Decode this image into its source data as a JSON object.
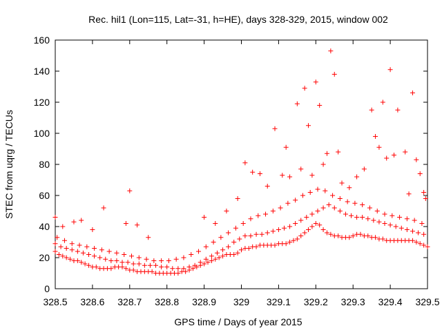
{
  "chart_data": {
    "type": "scatter",
    "title": "Rec. hil1 (Lon=115, Lat=-31, h=HE), days 328-329, 2015, window 002",
    "xlabel": "GPS time / Days of year 2015",
    "ylabel": "STEC from uqrg / TECUs",
    "xlim": [
      328.5,
      329.5
    ],
    "ylim": [
      0,
      160
    ],
    "x_ticks": [
      328.5,
      328.6,
      328.7,
      328.8,
      328.9,
      329.0,
      329.1,
      329.2,
      329.3,
      329.4,
      329.5
    ],
    "x_tick_labels": [
      "328.5",
      "328.6",
      "328.7",
      "328.8",
      "328.9",
      "329",
      "329.1",
      "329.2",
      "329.3",
      "329.4",
      "329.5"
    ],
    "y_ticks": [
      0,
      20,
      40,
      60,
      80,
      100,
      120,
      140,
      160
    ],
    "y_tick_labels": [
      "0",
      "20",
      "40",
      "60",
      "80",
      "100",
      "120",
      "140",
      "160"
    ],
    "grid": false,
    "marker": "plus",
    "colors": {
      "points": "#ff0000",
      "axes": "#000000",
      "background": "#ffffff"
    },
    "series": [
      {
        "x": [
          328.5,
          328.51,
          328.52,
          328.53,
          328.54,
          328.55,
          328.56,
          328.57,
          328.58,
          328.59,
          328.6,
          328.61,
          328.62,
          328.63,
          328.64,
          328.65,
          328.66,
          328.67,
          328.68,
          328.69,
          328.7,
          328.71,
          328.72,
          328.73,
          328.74,
          328.75,
          328.76,
          328.77,
          328.78,
          328.79,
          328.8,
          328.81,
          328.82,
          328.83,
          328.84,
          328.85,
          328.86,
          328.87,
          328.88,
          328.89,
          328.9,
          328.91,
          328.92,
          328.93,
          328.94,
          328.95,
          328.96,
          328.97,
          328.98,
          328.99,
          329.0,
          329.01,
          329.02,
          329.03,
          329.04,
          329.05,
          329.06,
          329.07,
          329.08,
          329.09,
          329.1,
          329.11,
          329.12,
          329.13,
          329.14,
          329.15,
          329.16,
          329.17,
          329.18,
          329.19,
          329.2,
          329.21,
          329.22,
          329.23,
          329.24,
          329.25,
          329.26,
          329.27,
          329.28,
          329.29,
          329.3,
          329.31,
          329.32,
          329.33,
          329.34,
          329.35,
          329.36,
          329.37,
          329.38,
          329.39,
          329.4,
          329.41,
          329.42,
          329.43,
          329.44,
          329.45,
          329.46,
          329.47,
          329.48,
          329.49,
          329.5,
          328.5,
          328.515,
          328.53,
          328.545,
          328.56,
          328.575,
          328.59,
          328.605,
          328.62,
          328.635,
          328.65,
          328.665,
          328.68,
          328.695,
          328.71,
          328.725,
          328.74,
          328.755,
          328.77,
          328.785,
          328.8,
          328.815,
          328.83,
          328.845,
          328.86,
          328.875,
          328.89,
          328.905,
          328.92,
          328.935,
          328.95,
          328.965,
          328.98,
          328.995,
          329.01,
          329.025,
          329.04,
          329.055,
          329.07,
          329.085,
          329.1,
          329.115,
          329.13,
          329.145,
          329.16,
          329.175,
          329.19,
          329.205,
          329.22,
          329.235,
          329.25,
          329.265,
          329.28,
          329.295,
          329.31,
          329.325,
          329.34,
          329.355,
          329.37,
          329.385,
          329.4,
          329.415,
          329.43,
          329.445,
          329.46,
          329.475,
          329.49,
          328.505,
          328.525,
          328.545,
          328.565,
          328.585,
          328.605,
          328.625,
          328.645,
          328.665,
          328.685,
          328.705,
          328.725,
          328.745,
          328.765,
          328.785,
          328.805,
          328.825,
          328.845,
          328.865,
          328.885,
          328.905,
          328.925,
          328.945,
          328.965,
          328.985,
          329.005,
          329.025,
          329.045,
          329.065,
          329.085,
          329.105,
          329.125,
          329.145,
          329.165,
          329.185,
          329.205,
          329.225,
          329.245,
          329.265,
          329.285,
          329.305,
          329.325,
          329.345,
          329.365,
          329.385,
          329.405,
          329.425,
          329.445,
          329.465,
          329.485,
          328.5,
          328.52,
          328.55,
          328.57,
          328.6,
          328.63,
          328.69,
          328.7,
          328.72,
          328.75,
          328.9,
          328.93,
          328.96,
          328.99,
          329.01,
          329.03,
          329.05,
          329.07,
          329.09,
          329.11,
          329.12,
          329.13,
          329.15,
          329.16,
          329.17,
          329.18,
          329.19,
          329.2,
          329.21,
          329.22,
          329.23,
          329.24,
          329.25,
          329.26,
          329.27,
          329.29,
          329.31,
          329.33,
          329.35,
          329.36,
          329.37,
          329.38,
          329.39,
          329.4,
          329.41,
          329.42,
          329.44,
          329.45,
          329.46,
          329.47,
          329.48,
          329.49,
          329.495
        ],
        "y": [
          24,
          22,
          21,
          20,
          19,
          18,
          18,
          17,
          16,
          15,
          14,
          14,
          13,
          13,
          13,
          13,
          14,
          14,
          14,
          13,
          12,
          12,
          11,
          11,
          11,
          11,
          11,
          10,
          10,
          10,
          10,
          10,
          10,
          10,
          11,
          11,
          12,
          13,
          14,
          15,
          16,
          17,
          18,
          19,
          20,
          21,
          22,
          22,
          22,
          23,
          25,
          26,
          26,
          27,
          27,
          28,
          28,
          28,
          28,
          28,
          29,
          29,
          29,
          30,
          31,
          32,
          34,
          36,
          38,
          40,
          42,
          41,
          38,
          36,
          35,
          34,
          34,
          33,
          33,
          33,
          34,
          35,
          35,
          34,
          34,
          33,
          33,
          32,
          32,
          31,
          31,
          31,
          31,
          31,
          31,
          31,
          31,
          30,
          29,
          28,
          27,
          29,
          27,
          26,
          25,
          24,
          23,
          22,
          21,
          20,
          19,
          18,
          18,
          17,
          17,
          16,
          16,
          15,
          15,
          15,
          14,
          14,
          13,
          13,
          13,
          14,
          15,
          17,
          19,
          21,
          23,
          25,
          27,
          30,
          32,
          34,
          34,
          35,
          35,
          36,
          37,
          38,
          39,
          40,
          42,
          44,
          46,
          48,
          50,
          52,
          54,
          52,
          50,
          48,
          47,
          46,
          46,
          45,
          44,
          43,
          42,
          41,
          40,
          39,
          38,
          37,
          36,
          35,
          33,
          31,
          29,
          28,
          27,
          26,
          25,
          24,
          23,
          22,
          21,
          20,
          19,
          18,
          18,
          18,
          19,
          20,
          22,
          24,
          27,
          30,
          33,
          36,
          39,
          42,
          45,
          47,
          48,
          50,
          52,
          55,
          57,
          60,
          62,
          64,
          63,
          60,
          58,
          56,
          55,
          54,
          52,
          50,
          48,
          47,
          46,
          45,
          44,
          42,
          46,
          40,
          43,
          44,
          38,
          52,
          42,
          63,
          41,
          33,
          46,
          42,
          50,
          58,
          81,
          75,
          74,
          66,
          103,
          73,
          91,
          72,
          119,
          77,
          129,
          105,
          73,
          133,
          118,
          80,
          87,
          153,
          138,
          88,
          68,
          65,
          72,
          77,
          115,
          98,
          91,
          120,
          84,
          141,
          86,
          115,
          88,
          61,
          126,
          83,
          74,
          62,
          58
        ]
      }
    ]
  }
}
